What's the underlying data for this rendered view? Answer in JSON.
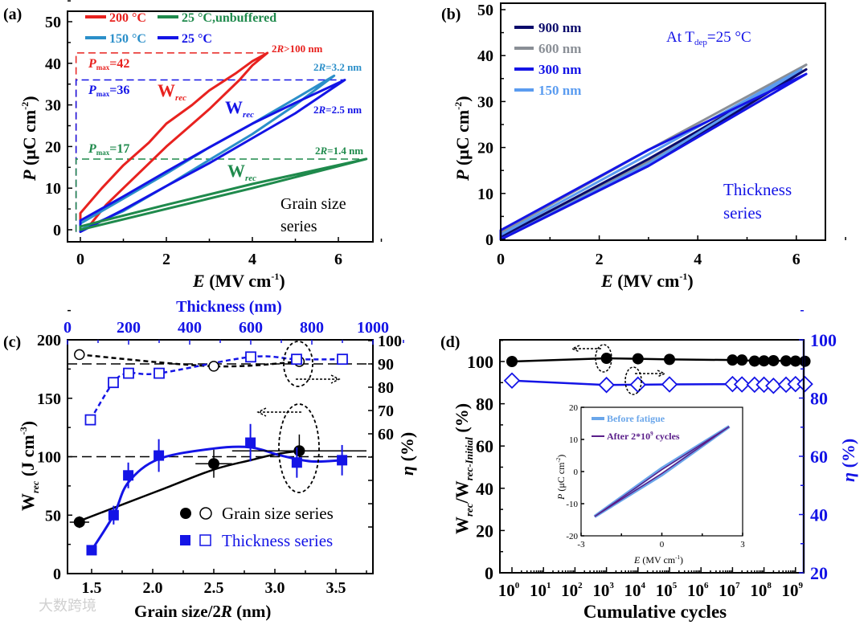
{
  "colors": {
    "red": "#e8221f",
    "green": "#1f8a4c",
    "lightblue": "#2b8fc9",
    "blue": "#1414e6",
    "navy": "#0b0b6b",
    "gray": "#8a8f96",
    "blue150": "#5b9cf0",
    "purple": "#5a1e8a",
    "before": "#6aa6ea",
    "black": "#000000"
  },
  "watermark": "大数跨境",
  "chart_data": [
    {
      "panel": "(a)",
      "type": "line",
      "xlabel": {
        "sym": "E",
        "unit": " (MV cm",
        "sup": "-1",
        "end": ")"
      },
      "ylabel": {
        "sym": "P",
        "unit": " (μC cm",
        "sup": "-2",
        "end": ")"
      },
      "xlim": [
        -0.3,
        6.8
      ],
      "ylim": [
        -2,
        52
      ],
      "xticks": [
        "0",
        "2",
        "4",
        "6"
      ],
      "yticks": [
        "0",
        "10",
        "20",
        "30",
        "40",
        "50"
      ],
      "legend": [
        {
          "label": "200 °C",
          "color": "red"
        },
        {
          "label": "25 °C,unbuffered",
          "color": "green"
        },
        {
          "label": "150 °C",
          "color": "lightblue"
        },
        {
          "label": "25 °C",
          "color": "blue"
        }
      ],
      "series": [
        {
          "name": "200 °C",
          "color": "red",
          "loop": [
            [
              0,
              4
            ],
            [
              0.5,
              10
            ],
            [
              1,
              15.5
            ],
            [
              1.6,
              21
            ],
            [
              2,
              25.5
            ],
            [
              2.6,
              30
            ],
            [
              3,
              33.5
            ],
            [
              3.6,
              37.5
            ],
            [
              4,
              40.5
            ],
            [
              4.35,
              42.5
            ],
            [
              4,
              39.5
            ],
            [
              3.7,
              36
            ],
            [
              3,
              29
            ],
            [
              2.5,
              24.5
            ],
            [
              2,
              20
            ],
            [
              1.5,
              15
            ],
            [
              1,
              10
            ],
            [
              0.6,
              6
            ],
            [
              0.25,
              1.5
            ],
            [
              0,
              -0.5
            ]
          ]
        },
        {
          "name": "150 °C",
          "color": "lightblue",
          "loop": [
            [
              0,
              1.5
            ],
            [
              1,
              7.5
            ],
            [
              2,
              13.5
            ],
            [
              3,
              19.8
            ],
            [
              4,
              25.5
            ],
            [
              5,
              31.5
            ],
            [
              5.9,
              37
            ],
            [
              5,
              30
            ],
            [
              4,
              23
            ],
            [
              3,
              16.8
            ],
            [
              2,
              10.5
            ],
            [
              1,
              4.5
            ],
            [
              0,
              0
            ]
          ]
        },
        {
          "name": "25 °C",
          "color": "blue",
          "loop": [
            [
              0,
              2.2
            ],
            [
              1,
              8
            ],
            [
              2,
              14
            ],
            [
              3,
              19.8
            ],
            [
              4,
              25.5
            ],
            [
              5,
              30.5
            ],
            [
              6.15,
              36
            ],
            [
              5,
              28
            ],
            [
              4,
              22
            ],
            [
              3,
              16
            ],
            [
              2,
              10.5
            ],
            [
              1,
              4.8
            ],
            [
              0,
              -0.5
            ]
          ]
        },
        {
          "name": "25 °C,unbuffered",
          "color": "green",
          "loop": [
            [
              0,
              0.8
            ],
            [
              2,
              6
            ],
            [
              4,
              11
            ],
            [
              6.65,
              17
            ],
            [
              4,
              10
            ],
            [
              2,
              5
            ],
            [
              0,
              0
            ]
          ]
        }
      ],
      "pmax": [
        {
          "label": "P",
          "sub": "max",
          "val": "=42",
          "value": 42.5,
          "emax": 4.35,
          "color": "red"
        },
        {
          "label": "P",
          "sub": "max",
          "val": "=36",
          "value": 36,
          "emax": 6.15,
          "color": "blue"
        },
        {
          "label": "P",
          "sub": "max",
          "val": "=17",
          "value": 17,
          "emax": 6.65,
          "color": "green"
        }
      ],
      "grain_labels": [
        {
          "pre": "2",
          "r": "R",
          "post": ">100 nm",
          "color": "red"
        },
        {
          "pre": "2",
          "r": "R",
          "post": "=3.2 nm",
          "color": "lightblue"
        },
        {
          "pre": "2",
          "r": "R",
          "post": "=2.5 nm",
          "color": "blue"
        },
        {
          "pre": "2",
          "r": "R",
          "post": "=1.4 nm",
          "color": "green"
        }
      ],
      "wrec": {
        "W": "W",
        "sub": "rec"
      },
      "note": [
        "Grain size",
        "series"
      ]
    },
    {
      "panel": "(b)",
      "type": "line",
      "xlabel": {
        "sym": "E",
        "unit": " (MV cm",
        "sup": "-1",
        "end": ")"
      },
      "ylabel": {
        "sym": "P",
        "unit": " (μC cm",
        "sup": "-2",
        "end": ")"
      },
      "xlim": [
        0,
        6.6
      ],
      "ylim": [
        0,
        50
      ],
      "xticks": [
        "0",
        "2",
        "4",
        "6"
      ],
      "yticks": [
        "0",
        "10",
        "20",
        "30",
        "40",
        "50"
      ],
      "legend": [
        {
          "label": "900 nm",
          "color": "navy"
        },
        {
          "label": "600 nm",
          "color": "gray"
        },
        {
          "label": "300 nm",
          "color": "blue"
        },
        {
          "label": "150 nm",
          "color": "blue150"
        }
      ],
      "series": [
        {
          "name": "600 nm",
          "color": "gray",
          "loop": [
            [
              0,
              1.5
            ],
            [
              3,
              19.5
            ],
            [
              6.2,
              38
            ],
            [
              3,
              17
            ],
            [
              0,
              0
            ]
          ]
        },
        {
          "name": "900 nm",
          "color": "navy",
          "loop": [
            [
              0,
              0.5
            ],
            [
              3,
              17.5
            ],
            [
              6.2,
              37
            ],
            [
              3,
              16
            ],
            [
              0,
              0
            ]
          ]
        },
        {
          "name": "150 nm",
          "color": "blue150",
          "loop": [
            [
              0,
              1
            ],
            [
              3,
              18.5
            ],
            [
              6.1,
              37
            ],
            [
              3,
              16.5
            ],
            [
              0,
              0
            ]
          ]
        },
        {
          "name": "300 nm",
          "color": "blue",
          "loop": [
            [
              0,
              2
            ],
            [
              3,
              19.5
            ],
            [
              6.2,
              36
            ],
            [
              3,
              16
            ],
            [
              0,
              0
            ]
          ]
        }
      ],
      "note_temp": {
        "pre": "At T",
        "sub": "dep",
        "post": "=25 °C"
      },
      "note": [
        "Thickness",
        "series"
      ]
    },
    {
      "panel": "(c)",
      "type": "scatter",
      "xlabel": {
        "pre": "Grain size/2",
        "r": "R",
        "post": " (nm)"
      },
      "x2label": "Thickness (nm)",
      "ylabel": {
        "W": "W",
        "sub": "rec",
        "unit": " (J cm",
        "sup": "-3",
        "end": ")"
      },
      "y2label": {
        "sym": "η",
        "unit": " (%)"
      },
      "xlim": [
        1.3,
        3.8
      ],
      "ylim": [
        0,
        200
      ],
      "x2lim": [
        0,
        1000
      ],
      "y2lim": [
        20,
        100
      ],
      "xticks": [
        "1.5",
        "2.0",
        "2.5",
        "3.0",
        "3.5"
      ],
      "yticks": [
        "0",
        "50",
        "100",
        "150",
        "200"
      ],
      "x2ticks": [
        "0",
        "200",
        "400",
        "600",
        "800",
        "1000"
      ],
      "y2ticks": [
        "60",
        "70",
        "80",
        "90",
        "100"
      ],
      "grain_wrec": {
        "x": [
          1.4,
          2.5,
          3.2
        ],
        "y": [
          44,
          94,
          105
        ],
        "yerr": [
          5,
          12,
          14
        ],
        "xerr": [
          0.08,
          0.15,
          0.55
        ]
      },
      "grain_eta": {
        "x": [
          1.4,
          2.5,
          3.2
        ],
        "y": [
          94,
          89,
          91
        ]
      },
      "thick_wrec": {
        "x": [
          1.5,
          1.68,
          1.8,
          2.05,
          2.8,
          3.18,
          3.55
        ],
        "y": [
          20,
          50,
          84,
          101,
          112,
          95,
          97
        ],
        "yerr": [
          3,
          8,
          11,
          14,
          16,
          13,
          13
        ]
      },
      "thick_eta": {
        "thickness": [
          75,
          150,
          200,
          300,
          600,
          750,
          900
        ],
        "y": [
          66,
          82,
          86,
          86,
          93,
          92,
          92
        ]
      },
      "grain_fit": [
        [
          1.4,
          45
        ],
        [
          1.7,
          57
        ],
        [
          2.1,
          73
        ],
        [
          2.5,
          89
        ],
        [
          2.8,
          97
        ],
        [
          3.0,
          102
        ],
        [
          3.2,
          105
        ]
      ],
      "thick_fit": [
        [
          1.5,
          20
        ],
        [
          1.68,
          50
        ],
        [
          1.8,
          78
        ],
        [
          2.05,
          98
        ],
        [
          2.5,
          107
        ],
        [
          2.8,
          108
        ],
        [
          3.05,
          101
        ],
        [
          3.3,
          96
        ],
        [
          3.55,
          97
        ]
      ],
      "legend": [
        "Grain size series",
        "Thickness series"
      ]
    },
    {
      "panel": "(d)",
      "type": "line",
      "xlabel": "Cumulative cycles",
      "ylabel": {
        "a": "W",
        "asub": "rec",
        "b": "/W",
        "bsub": "rec-Initial",
        "c": " (%)"
      },
      "y2label": {
        "sym": "η",
        "unit": " (%)"
      },
      "xlim_log10": [
        -0.4,
        9.6
      ],
      "ylim": [
        0,
        110
      ],
      "y2lim": [
        20,
        100
      ],
      "xticks": [
        {
          "b": "10",
          "e": "0"
        },
        {
          "b": "10",
          "e": "1"
        },
        {
          "b": "10",
          "e": "2"
        },
        {
          "b": "10",
          "e": "3"
        },
        {
          "b": "10",
          "e": "4"
        },
        {
          "b": "10",
          "e": "5"
        },
        {
          "b": "10",
          "e": "6"
        },
        {
          "b": "10",
          "e": "7"
        },
        {
          "b": "10",
          "e": "8"
        },
        {
          "b": "10",
          "e": "9"
        }
      ],
      "yticks": [
        "0",
        "20",
        "40",
        "60",
        "80",
        "100"
      ],
      "y2ticks": [
        "20",
        "40",
        "60",
        "80",
        "100"
      ],
      "log10_cycles": [
        0,
        3,
        4,
        5,
        7,
        7.3,
        7.7,
        8,
        8.3,
        8.7,
        9,
        9.3
      ],
      "wrec_ratio": [
        100,
        101.5,
        101.3,
        101,
        100.7,
        100.7,
        100.2,
        100.3,
        100.4,
        100.3,
        100.2,
        100.1
      ],
      "eta": [
        86,
        84.5,
        84.6,
        84.7,
        84.8,
        84.7,
        84.6,
        84.6,
        84.2,
        84.6,
        84.8,
        84.8
      ],
      "inset": {
        "xlabel": {
          "sym": "E",
          "unit": " (MV cm",
          "sup": "-1",
          "end": ")"
        },
        "ylabel": {
          "sym": "P",
          "unit": " (μC cm",
          "sup": "-2",
          "end": ")"
        },
        "xlim": [
          -3,
          3
        ],
        "ylim": [
          -20,
          20
        ],
        "xticks": [
          "-3",
          "0",
          "3"
        ],
        "yticks": [
          "-20",
          "-10",
          "0",
          "10",
          "20"
        ],
        "legend": [
          {
            "label": "Before fatigue",
            "color": "before"
          },
          {
            "label": "After 2*10",
            "sup": "9",
            "post": " cycles",
            "color": "purple"
          }
        ],
        "before_loop": [
          [
            -2.5,
            -14
          ],
          [
            0,
            1
          ],
          [
            2.5,
            14
          ],
          [
            0,
            -1
          ],
          [
            -2.5,
            -14
          ]
        ],
        "after_loop": [
          [
            -2.5,
            -14
          ],
          [
            0,
            0.6
          ],
          [
            2.5,
            14
          ],
          [
            0,
            -0.6
          ],
          [
            -2.5,
            -14
          ]
        ]
      }
    }
  ]
}
